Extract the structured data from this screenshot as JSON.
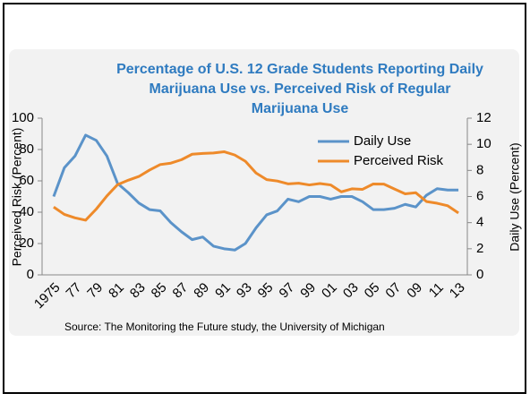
{
  "chart_data": {
    "type": "line",
    "title": [
      "Percentage of U.S. 12 Grade Students Reporting Daily",
      "Marijuana Use vs. Perceived Risk of Regular",
      "Marijuana Use"
    ],
    "y_label": "Perceived Risk (Percent)",
    "y2_label": "Daily Use (Percent)",
    "source": "Source: The Monitoring the Future study, the University of Michigan",
    "categories": [
      "1975",
      null,
      "77",
      null,
      "79",
      null,
      "81",
      null,
      "83",
      null,
      "85",
      null,
      "87",
      null,
      "89",
      null,
      "91",
      null,
      "93",
      null,
      "95",
      null,
      "97",
      null,
      "99",
      null,
      "01",
      null,
      "03",
      null,
      "05",
      null,
      "07",
      null,
      "09",
      null,
      "11",
      null,
      "13"
    ],
    "series": [
      {
        "name": "Daily Use",
        "color": "#5b93c9",
        "axis": "y2",
        "values": [
          6.0,
          8.2,
          9.1,
          10.7,
          10.3,
          9.1,
          7.0,
          6.3,
          5.5,
          5.0,
          4.9,
          4.0,
          3.3,
          2.7,
          2.9,
          2.2,
          2.0,
          1.9,
          2.4,
          3.6,
          4.6,
          4.9,
          5.8,
          5.6,
          6.0,
          6.0,
          5.8,
          6.0,
          6.0,
          5.6,
          5.0,
          5.0,
          5.1,
          5.4,
          5.2,
          6.1,
          6.6,
          6.5,
          6.5
        ]
      },
      {
        "name": "Perceived Risk",
        "color": "#ee8a2a",
        "values": [
          43.3,
          38.6,
          36.4,
          34.9,
          42.0,
          50.4,
          57.6,
          60.4,
          62.8,
          66.9,
          70.4,
          71.3,
          73.5,
          77.0,
          77.5,
          77.8,
          78.6,
          76.5,
          72.5,
          65.0,
          60.8,
          59.9,
          58.1,
          58.5,
          57.4,
          58.3,
          57.4,
          53.0,
          54.9,
          54.6,
          58.0,
          57.9,
          54.8,
          51.7,
          52.4,
          46.8,
          45.7,
          44.1,
          39.5
        ]
      }
    ],
    "ylim": [
      0,
      100
    ],
    "yticks": [
      0,
      20,
      40,
      60,
      80,
      100
    ],
    "y2lim": [
      0,
      12
    ],
    "y2ticks": [
      0,
      2,
      4,
      6,
      8,
      10,
      12
    ],
    "legend": "upper right"
  }
}
